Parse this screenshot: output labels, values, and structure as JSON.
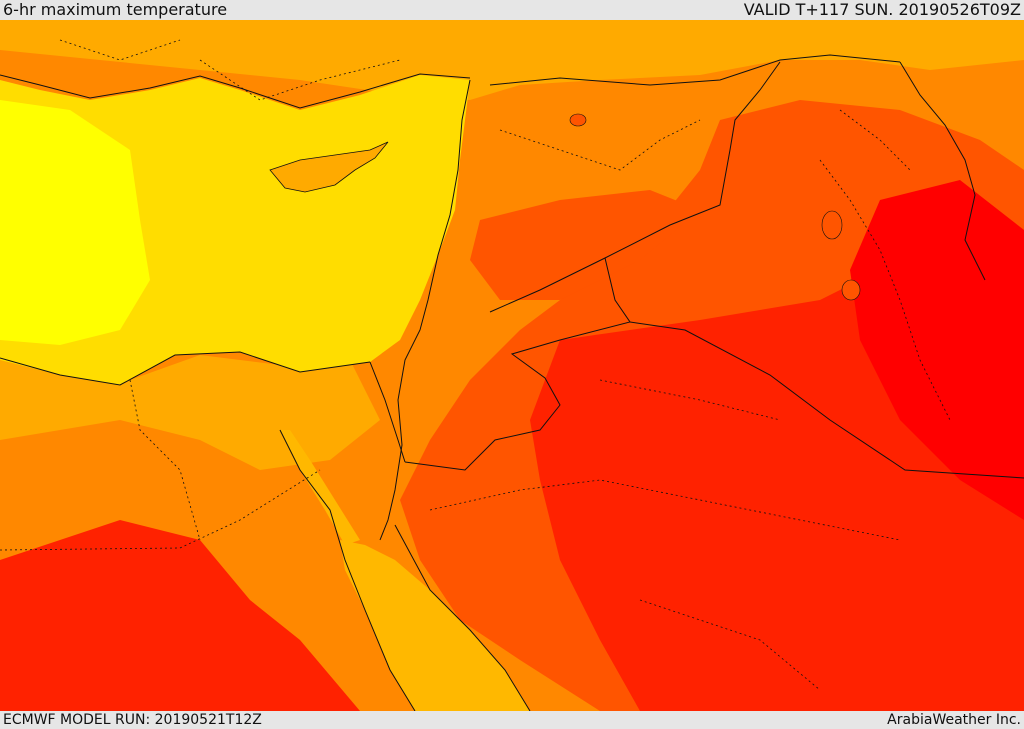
{
  "header": {
    "title": "6-hr maximum temperature",
    "valid_time": "VALID T+117 SUN. 20190526T09Z"
  },
  "footer": {
    "model_run": "ECMWF MODEL RUN: 20190521T12Z",
    "credit": "ArabiaWeather Inc."
  },
  "map": {
    "palette": {
      "sea_cool": "#ffff00",
      "sea_warm": "#ffdd00",
      "band_warm": "#ffaa00",
      "band_hot": "#ff8800",
      "band_very_hot": "#ff5500",
      "band_extreme": "#ff2200",
      "band_peak": "#ff0000",
      "red_sea": "#ffb800",
      "border_color": "#111111"
    }
  }
}
